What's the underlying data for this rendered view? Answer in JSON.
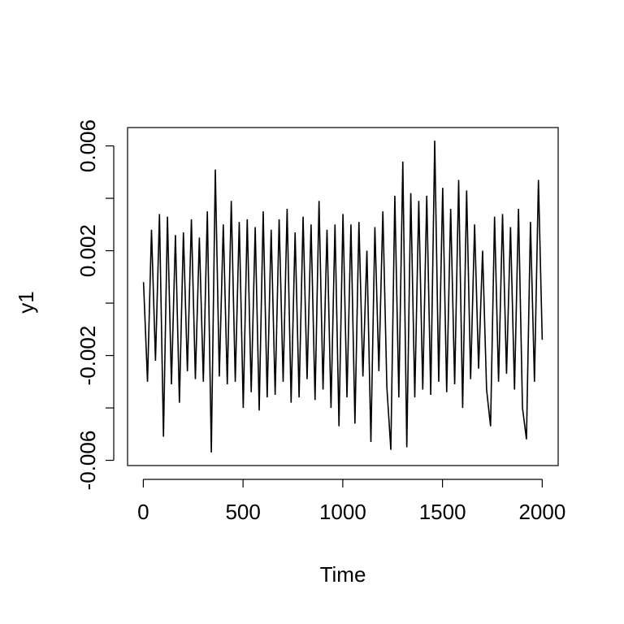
{
  "chart_data": {
    "type": "line",
    "x_label": "Time",
    "y_label": "y1",
    "color": "#000000",
    "x": [
      1,
      21,
      41,
      61,
      81,
      101,
      121,
      141,
      161,
      181,
      201,
      221,
      241,
      261,
      281,
      301,
      321,
      341,
      361,
      381,
      401,
      421,
      441,
      461,
      481,
      501,
      521,
      541,
      561,
      581,
      601,
      621,
      641,
      661,
      681,
      701,
      721,
      741,
      761,
      781,
      801,
      821,
      841,
      861,
      881,
      901,
      921,
      941,
      961,
      981,
      1001,
      1021,
      1041,
      1061,
      1081,
      1101,
      1121,
      1141,
      1161,
      1181,
      1201,
      1221,
      1241,
      1261,
      1281,
      1301,
      1321,
      1341,
      1361,
      1381,
      1401,
      1421,
      1441,
      1461,
      1481,
      1501,
      1521,
      1541,
      1561,
      1581,
      1601,
      1621,
      1641,
      1661,
      1681,
      1701,
      1721,
      1741,
      1761,
      1781,
      1801,
      1821,
      1841,
      1861,
      1881,
      1901,
      1921,
      1941,
      1961,
      1981,
      2000
    ],
    "values": [
      0.0008,
      -0.003,
      0.0028,
      -0.0022,
      0.0034,
      -0.0051,
      0.0033,
      -0.0031,
      0.0026,
      -0.0038,
      0.0027,
      -0.0026,
      0.0032,
      -0.0029,
      0.0025,
      -0.003,
      0.0035,
      -0.0057,
      0.0051,
      -0.0028,
      0.003,
      -0.0031,
      0.0039,
      -0.003,
      0.0031,
      -0.004,
      0.0032,
      -0.0034,
      0.0029,
      -0.0041,
      0.0035,
      -0.0036,
      0.0028,
      -0.0035,
      0.0032,
      -0.003,
      0.0036,
      -0.0038,
      0.0027,
      -0.0036,
      0.0033,
      -0.0029,
      0.003,
      -0.0037,
      0.0039,
      -0.0033,
      0.0028,
      -0.004,
      0.003,
      -0.0047,
      0.0034,
      -0.0036,
      0.003,
      -0.0046,
      0.0031,
      -0.0028,
      0.002,
      -0.0053,
      0.0029,
      -0.0026,
      0.0035,
      -0.0032,
      -0.0056,
      0.0041,
      -0.0036,
      0.0054,
      -0.0055,
      0.0042,
      -0.0036,
      0.0039,
      -0.0033,
      0.0041,
      -0.0035,
      0.0062,
      -0.003,
      0.0044,
      -0.0034,
      0.0036,
      -0.0031,
      0.0047,
      -0.004,
      0.0043,
      -0.0029,
      0.003,
      -0.0025,
      0.002,
      -0.0033,
      -0.0047,
      0.0033,
      -0.003,
      0.0034,
      -0.0027,
      0.0029,
      -0.0033,
      0.0036,
      -0.004,
      -0.0052,
      0.0031,
      -0.003,
      0.0047,
      -0.0014
    ],
    "xlim": [
      -79,
      2080
    ],
    "ylim": [
      -0.0062,
      0.0067
    ],
    "xticks": [
      0,
      500,
      1000,
      1500,
      2000
    ],
    "yticks": [
      -0.006,
      -0.004,
      -0.002,
      0,
      0.002,
      0.004,
      0.006
    ],
    "ytick_label_step": 2
  }
}
